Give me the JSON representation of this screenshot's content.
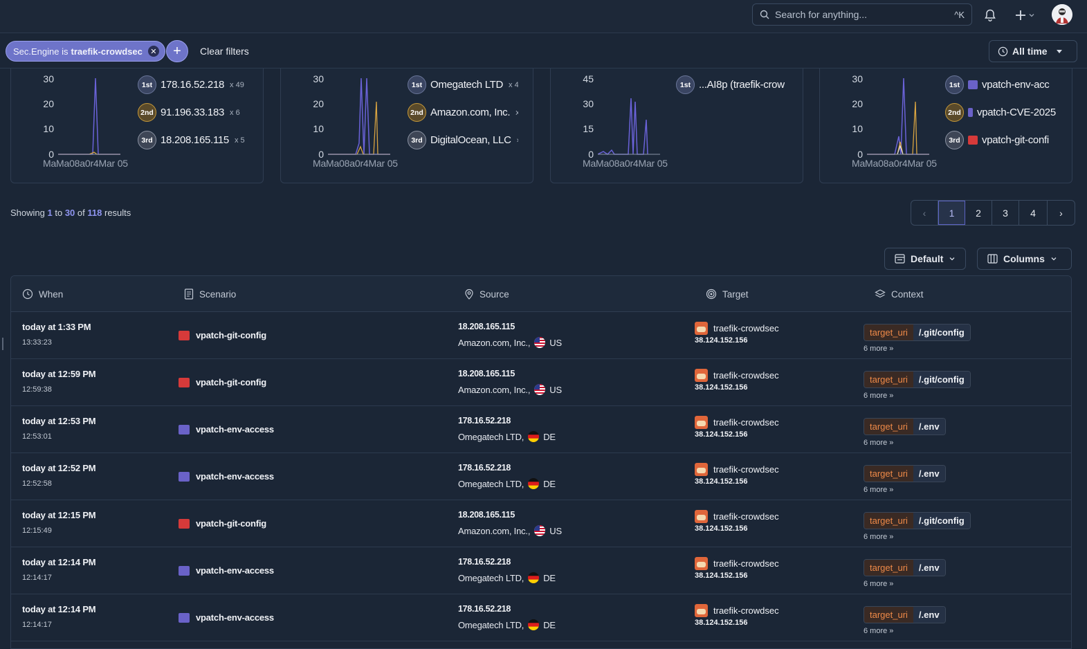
{
  "topbar": {
    "search_placeholder": "Search for anything...",
    "shortcut": "^K"
  },
  "filters": {
    "chip_prefix": "Sec.Engine is",
    "chip_value": "traefik-crowdsec",
    "clear_label": "Clear filters",
    "time_label": "All time"
  },
  "cards": [
    {
      "yticks": [
        "30",
        "20",
        "10",
        "0"
      ],
      "xlabel": "MaMa08a0r4Mar 05",
      "ranks": [
        {
          "badge": "1st",
          "name": "178.16.52.218",
          "count": "x 49"
        },
        {
          "badge": "2nd",
          "name": "91.196.33.183",
          "count": "x 6"
        },
        {
          "badge": "3rd",
          "name": "18.208.165.115",
          "count": "x 5"
        }
      ]
    },
    {
      "yticks": [
        "30",
        "20",
        "10",
        "0"
      ],
      "xlabel": "MaMa08a0r4Mar 05",
      "ranks": [
        {
          "badge": "1st",
          "name": "Omegatech LTD",
          "count": "x 4"
        },
        {
          "badge": "2nd",
          "name": "Amazon.com, Inc.",
          "count": "x"
        },
        {
          "badge": "3rd",
          "name": "DigitalOcean, LLC",
          "count": "›"
        }
      ]
    },
    {
      "yticks": [
        "45",
        "30",
        "15",
        "0"
      ],
      "xlabel": "MaMa08a0r4Mar 05",
      "ranks": [
        {
          "badge": "1st",
          "name": "...AI8p (traefik-crow",
          "count": ""
        }
      ]
    },
    {
      "yticks": [
        "30",
        "20",
        "10",
        "0"
      ],
      "xlabel": "MaMa08a0r4Mar 05",
      "ranks": [
        {
          "badge": "1st",
          "name": "vpatch-env-acc",
          "count": ""
        },
        {
          "badge": "2nd",
          "name": "vpatch-CVE-2025",
          "count": ""
        },
        {
          "badge": "3rd",
          "name": "vpatch-git-confi",
          "count": ""
        }
      ]
    }
  ],
  "results": {
    "prefix": "Showing",
    "from": "1",
    "to_word": "to",
    "to": "30",
    "of_word": "of",
    "total": "118",
    "suffix": "results"
  },
  "pagination": {
    "prev": "‹",
    "pages": [
      "1",
      "2",
      "3",
      "4"
    ],
    "next": "›"
  },
  "view": {
    "default_label": "Default",
    "columns_label": "Columns"
  },
  "table": {
    "headers": {
      "when": "When",
      "scenario": "Scenario",
      "source": "Source",
      "target": "Target",
      "context": "Context"
    },
    "rows": [
      {
        "when": "today at 1:33 PM",
        "time": "13:33:23",
        "scenario": "vpatch-git-config",
        "scenario_color": "#d63a3a",
        "ip": "18.208.165.115",
        "org": "Amazon.com, Inc.,",
        "cc": "US",
        "target": "traefik-crowdsec",
        "target_ip": "38.124.152.156",
        "ctx_key": "target_uri",
        "ctx_val": "/.git/config",
        "more": "6 more »"
      },
      {
        "when": "today at 12:59 PM",
        "time": "12:59:38",
        "scenario": "vpatch-git-config",
        "scenario_color": "#d63a3a",
        "ip": "18.208.165.115",
        "org": "Amazon.com, Inc.,",
        "cc": "US",
        "target": "traefik-crowdsec",
        "target_ip": "38.124.152.156",
        "ctx_key": "target_uri",
        "ctx_val": "/.git/config",
        "more": "6 more »"
      },
      {
        "when": "today at 12:53 PM",
        "time": "12:53:01",
        "scenario": "vpatch-env-access",
        "scenario_color": "#6a62c8",
        "ip": "178.16.52.218",
        "org": "Omegatech LTD,",
        "cc": "DE",
        "target": "traefik-crowdsec",
        "target_ip": "38.124.152.156",
        "ctx_key": "target_uri",
        "ctx_val": "/.env",
        "more": "6 more »"
      },
      {
        "when": "today at 12:52 PM",
        "time": "12:52:58",
        "scenario": "vpatch-env-access",
        "scenario_color": "#6a62c8",
        "ip": "178.16.52.218",
        "org": "Omegatech LTD,",
        "cc": "DE",
        "target": "traefik-crowdsec",
        "target_ip": "38.124.152.156",
        "ctx_key": "target_uri",
        "ctx_val": "/.env",
        "more": "6 more »"
      },
      {
        "when": "today at 12:15 PM",
        "time": "12:15:49",
        "scenario": "vpatch-git-config",
        "scenario_color": "#d63a3a",
        "ip": "18.208.165.115",
        "org": "Amazon.com, Inc.,",
        "cc": "US",
        "target": "traefik-crowdsec",
        "target_ip": "38.124.152.156",
        "ctx_key": "target_uri",
        "ctx_val": "/.git/config",
        "more": "6 more »"
      },
      {
        "when": "today at 12:14 PM",
        "time": "12:14:17",
        "scenario": "vpatch-env-access",
        "scenario_color": "#6a62c8",
        "ip": "178.16.52.218",
        "org": "Omegatech LTD,",
        "cc": "DE",
        "target": "traefik-crowdsec",
        "target_ip": "38.124.152.156",
        "ctx_key": "target_uri",
        "ctx_val": "/.env",
        "more": "6 more »"
      },
      {
        "when": "today at 12:14 PM",
        "time": "12:14:17",
        "scenario": "vpatch-env-access",
        "scenario_color": "#6a62c8",
        "ip": "178.16.52.218",
        "org": "Omegatech LTD,",
        "cc": "DE",
        "target": "traefik-crowdsec",
        "target_ip": "38.124.152.156",
        "ctx_key": "target_uri",
        "ctx_val": "/.env",
        "more": "6 more »"
      }
    ]
  },
  "colors": {
    "accent": "#6e74c9",
    "series_a": "#6a62d8",
    "series_b": "#d9a441"
  }
}
